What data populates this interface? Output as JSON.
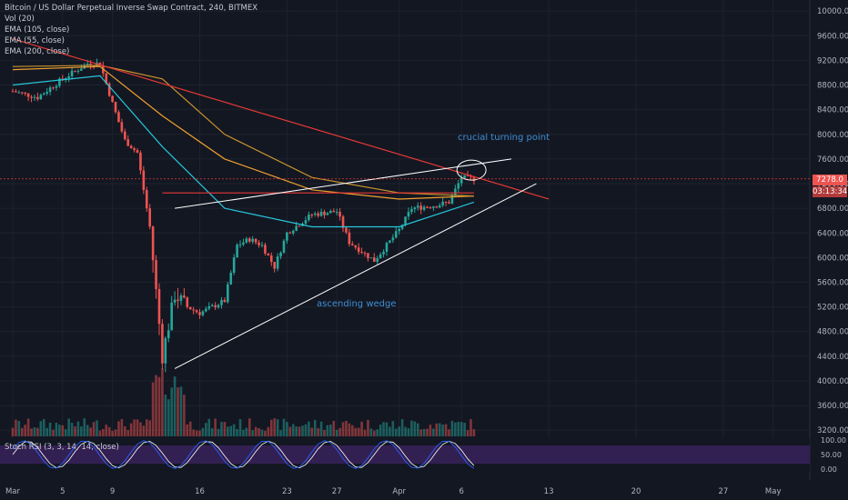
{
  "header": {
    "title": "Bitcoin / US Dollar Perpetual Inverse Swap Contract, 240, BITMEX",
    "indicators": [
      "Vol (20)",
      "EMA (105, close)",
      "EMA (55, close)",
      "EMA (200, close)"
    ]
  },
  "oscillator": {
    "label": "Stoch RSI (3, 3, 14, 14, close)"
  },
  "annotations": {
    "turning_point": "crucial turning point",
    "wedge": "ascending wedge"
  },
  "price_tags": {
    "last_price": "7278.0",
    "countdown": "03:13:34"
  },
  "colors": {
    "background": "#131722",
    "up": "#26a69a",
    "down": "#ef5350",
    "ema_105": "#f0a030",
    "ema_55": "#26c6da",
    "ema_200": "#c8922e",
    "trendline_red": "#e53935",
    "wedge_line": "#ffffff",
    "annotation": "#3d8fd6",
    "stoch_k": "#2962ff",
    "stoch_d": "#ffffff",
    "stoch_band": "#5b2c8f"
  },
  "chart_data": {
    "type": "candlestick",
    "x_ticks": [
      "Mar",
      "5",
      "9",
      "16",
      "23",
      "27",
      "Apr",
      "6",
      "13",
      "20",
      "27",
      "May"
    ],
    "y_ticks": [
      10000,
      9600,
      9200,
      8800,
      8400,
      8000,
      7600,
      7200,
      6800,
      6400,
      6000,
      5600,
      5200,
      4800,
      4400,
      4000,
      3600,
      3200
    ],
    "y_range": [
      3100,
      10150
    ],
    "stoch_ticks": [
      "100.00",
      "50.00",
      "0.00"
    ],
    "last_price": 7278.0,
    "price_path": [
      {
        "x": "Mar 1",
        "price": 8700
      },
      {
        "x": "Mar 3",
        "price": 8600
      },
      {
        "x": "Mar 5",
        "price": 8900
      },
      {
        "x": "Mar 7",
        "price": 9150
      },
      {
        "x": "Mar 8",
        "price": 9150
      },
      {
        "x": "Mar 9",
        "price": 8500
      },
      {
        "x": "Mar 10",
        "price": 7900
      },
      {
        "x": "Mar 11",
        "price": 7700
      },
      {
        "x": "Mar 12",
        "price": 6500
      },
      {
        "x": "Mar 13",
        "price": 4400
      },
      {
        "x": "Mar 14",
        "price": 5400
      },
      {
        "x": "Mar 15",
        "price": 5200
      },
      {
        "x": "Mar 16",
        "price": 5100
      },
      {
        "x": "Mar 18",
        "price": 5300
      },
      {
        "x": "Mar 19",
        "price": 6200
      },
      {
        "x": "Mar 20",
        "price": 6300
      },
      {
        "x": "Mar 21",
        "price": 6200
      },
      {
        "x": "Mar 22",
        "price": 5850
      },
      {
        "x": "Mar 23",
        "price": 6400
      },
      {
        "x": "Mar 25",
        "price": 6700
      },
      {
        "x": "Mar 27",
        "price": 6750
      },
      {
        "x": "Mar 28",
        "price": 6250
      },
      {
        "x": "Mar 30",
        "price": 5950
      },
      {
        "x": "Apr 1",
        "price": 6450
      },
      {
        "x": "Apr 2",
        "price": 6800
      },
      {
        "x": "Apr 4",
        "price": 6850
      },
      {
        "x": "Apr 5",
        "price": 6900
      },
      {
        "x": "Apr 6",
        "price": 7300
      },
      {
        "x": "Apr 7",
        "price": 7278
      }
    ],
    "series": [
      {
        "name": "EMA (105, close)",
        "points": [
          {
            "x": "Mar 1",
            "y": 9050
          },
          {
            "x": "Mar 8",
            "y": 9100
          },
          {
            "x": "Mar 13",
            "y": 8300
          },
          {
            "x": "Mar 18",
            "y": 7600
          },
          {
            "x": "Mar 25",
            "y": 7100
          },
          {
            "x": "Apr 1",
            "y": 6950
          },
          {
            "x": "Apr 7",
            "y": 7000
          }
        ]
      },
      {
        "name": "EMA (55, close)",
        "points": [
          {
            "x": "Mar 1",
            "y": 8800
          },
          {
            "x": "Mar 8",
            "y": 8950
          },
          {
            "x": "Mar 13",
            "y": 7800
          },
          {
            "x": "Mar 18",
            "y": 6800
          },
          {
            "x": "Mar 25",
            "y": 6500
          },
          {
            "x": "Apr 1",
            "y": 6500
          },
          {
            "x": "Apr 7",
            "y": 6900
          }
        ]
      },
      {
        "name": "EMA (200, close)",
        "points": [
          {
            "x": "Mar 1",
            "y": 9100
          },
          {
            "x": "Mar 8",
            "y": 9120
          },
          {
            "x": "Mar 13",
            "y": 8900
          },
          {
            "x": "Mar 18",
            "y": 8000
          },
          {
            "x": "Mar 25",
            "y": 7300
          },
          {
            "x": "Apr 1",
            "y": 7050
          },
          {
            "x": "Apr 7",
            "y": 7000
          }
        ]
      }
    ],
    "drawings": [
      {
        "name": "red-downtrend-line",
        "from": {
          "x": "Mar 1",
          "y": 9550
        },
        "to": {
          "x": "Apr 13",
          "y": 6950
        }
      },
      {
        "name": "red-horizontal-resistance",
        "from": {
          "x": "Mar 13",
          "y": 7050
        },
        "to": {
          "x": "Apr 7",
          "y": 7050
        }
      },
      {
        "name": "wedge-upper-line",
        "from": {
          "x": "Mar 14",
          "y": 6800
        },
        "to": {
          "x": "Apr 10",
          "y": 7600
        }
      },
      {
        "name": "wedge-lower-line",
        "from": {
          "x": "Mar 14",
          "y": 4200
        },
        "to": {
          "x": "Apr 12",
          "y": 7200
        }
      }
    ],
    "grid": true
  }
}
